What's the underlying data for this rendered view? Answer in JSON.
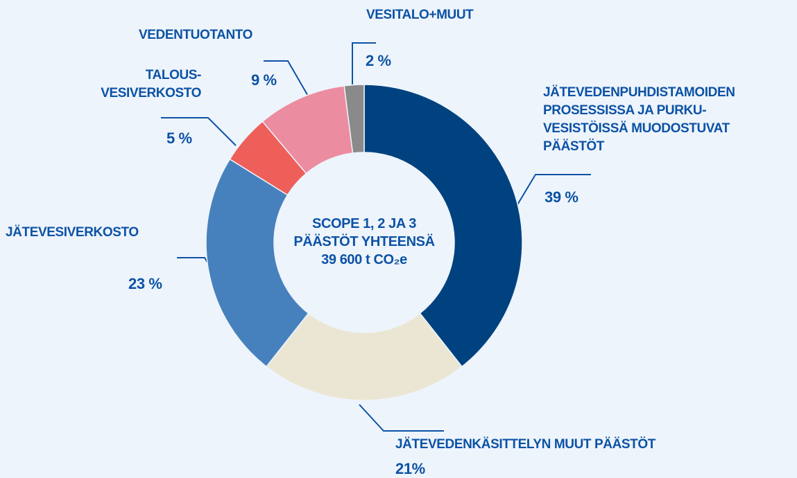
{
  "chart_data": {
    "type": "donut",
    "center_text": "SCOPE 1, 2 JA 3\nPÄÄSTÖT YHTEENSÄ\n39 600 t CO₂e",
    "categories": [
      "JÄTEVEDENPUHDISTAMOIDEN\nPROSESSISSA JA PURKU-\nVESISTÖISSÄ MUODOSTUVAT\nPÄÄSTÖT",
      "JÄTEVEDENKÄSITTELYN MUUT PÄÄSTÖT",
      "JÄTEVESIVERKOSTO",
      "TALOUS-\nVESIVERKOSTO",
      "VEDENTUOTANTO",
      "VESITALO+MUUT"
    ],
    "values": [
      39,
      21,
      23,
      5,
      9,
      2
    ],
    "value_labels": [
      "39 %",
      "21%",
      "23 %",
      "5 %",
      "9 %",
      "2 %"
    ],
    "colors": [
      "#00427f",
      "#ebe6d3",
      "#4781bd",
      "#ee5f5a",
      "#ec8ca0",
      "#8a8a8a"
    ]
  }
}
